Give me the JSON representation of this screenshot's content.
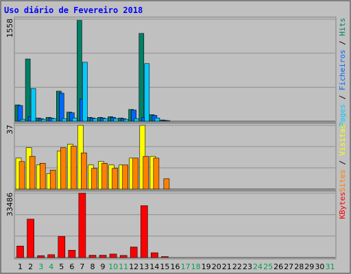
{
  "chart_data": {
    "type": "bar",
    "title": "Uso diário de Fevereiro 2018",
    "categories": [
      "1",
      "2",
      "3",
      "4",
      "5",
      "6",
      "7",
      "8",
      "9",
      "10",
      "11",
      "12",
      "13",
      "14",
      "15",
      "16",
      "17",
      "18",
      "19",
      "20",
      "21",
      "22",
      "23",
      "24",
      "25",
      "26",
      "27",
      "28",
      "29",
      "30",
      "31"
    ],
    "weekend_days": [
      "3",
      "4",
      "10",
      "11",
      "17",
      "18",
      "24",
      "25",
      "31"
    ],
    "panels": [
      {
        "ymax": 1558,
        "ymax_label": "1558",
        "side_labels": [
          {
            "text": "Pages",
            "color": "#00ccff"
          },
          {
            "text": " / ",
            "color": "#000000"
          },
          {
            "text": "Ficheiros",
            "color": "#0066ff"
          },
          {
            "text": " / ",
            "color": "#000000"
          },
          {
            "text": "Hits",
            "color": "#008066"
          }
        ],
        "series": [
          {
            "name": "Hits",
            "color": "#008066",
            "values": [
              250,
              950,
              50,
              60,
              460,
              140,
              1540,
              60,
              60,
              70,
              50,
              180,
              1340,
              100,
              20,
              0,
              0,
              0,
              0,
              0,
              0,
              0,
              0,
              0,
              0,
              0,
              0,
              0,
              0,
              0,
              0
            ]
          },
          {
            "name": "Ficheiros",
            "color": "#0066ff",
            "values": [
              240,
              70,
              40,
              50,
              430,
              130,
              340,
              50,
              50,
              60,
              40,
              170,
              60,
              90,
              15,
              0,
              0,
              0,
              0,
              0,
              0,
              0,
              0,
              0,
              0,
              0,
              0,
              0,
              0,
              0,
              0
            ]
          },
          {
            "name": "Pages",
            "color": "#00ccff",
            "values": [
              30,
              500,
              30,
              40,
              40,
              50,
              900,
              40,
              40,
              40,
              30,
              40,
              880,
              50,
              5,
              0,
              0,
              0,
              0,
              0,
              0,
              0,
              0,
              0,
              0,
              0,
              0,
              0,
              0,
              0,
              0
            ]
          }
        ]
      },
      {
        "ymax": 37,
        "ymax_label": "37",
        "side_labels": [
          {
            "text": "Sites",
            "color": "#ff8000"
          },
          {
            "text": " / ",
            "color": "#000000"
          },
          {
            "text": "Visitas",
            "color": "#ffff00"
          }
        ],
        "series": [
          {
            "name": "Visitas",
            "color": "#ffff00",
            "values": [
              18,
              24,
              14,
              9,
              22,
              26,
              37,
              14,
              16,
              14,
              14,
              18,
              37,
              19,
              0,
              0,
              0,
              0,
              0,
              0,
              0,
              0,
              0,
              0,
              0,
              0,
              0,
              0,
              0,
              0,
              0
            ]
          },
          {
            "name": "Sites",
            "color": "#ff8000",
            "values": [
              16,
              19,
              15,
              11,
              24,
              25,
              21,
              12,
              15,
              12,
              14,
              18,
              19,
              18,
              6,
              0,
              0,
              0,
              0,
              0,
              0,
              0,
              0,
              0,
              0,
              0,
              0,
              0,
              0,
              0,
              0
            ]
          }
        ]
      },
      {
        "ymax": 33486,
        "ymax_label": "33486",
        "side_labels": [
          {
            "text": "KBytes",
            "color": "#ff0000"
          }
        ],
        "series": [
          {
            "name": "KBytes",
            "color": "#ff0000",
            "values": [
              6000,
              20000,
              1000,
              1500,
              11000,
              3800,
              33486,
              1200,
              1200,
              1800,
              1100,
              5500,
              27000,
              2500,
              500,
              0,
              0,
              0,
              0,
              0,
              0,
              0,
              0,
              0,
              0,
              0,
              0,
              0,
              0,
              0,
              0
            ]
          }
        ]
      }
    ]
  },
  "colors": {
    "background": "#c0c0c0",
    "plot_background": "#ffffff",
    "title": "#0000ff",
    "weekday_tick": "#000000",
    "weekend_tick": "#00a050"
  }
}
